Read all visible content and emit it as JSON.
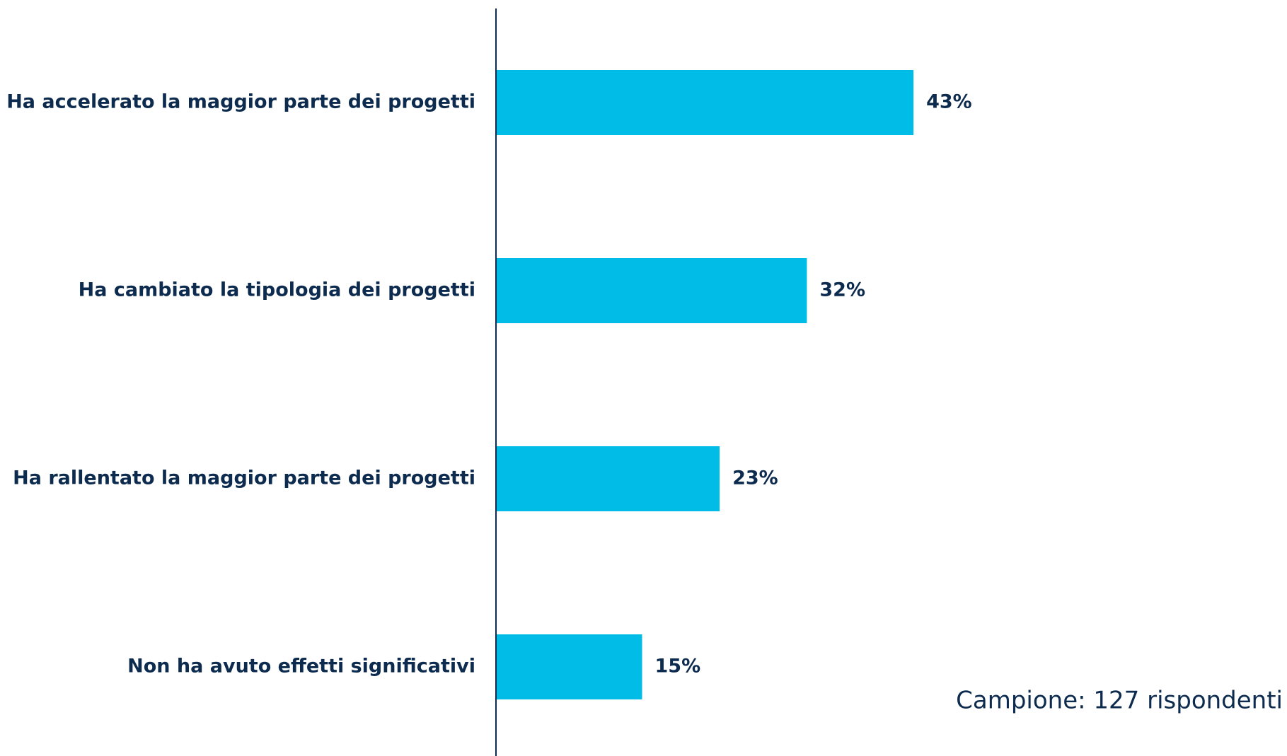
{
  "chart_data": {
    "type": "bar",
    "orientation": "horizontal",
    "categories": [
      "Ha accelerato la maggior parte dei progetti",
      "Ha cambiato la tipologia dei progetti",
      "Ha rallentato la maggior parte dei progetti",
      "Non ha avuto effetti significativi"
    ],
    "values": [
      43,
      32,
      23,
      15
    ],
    "value_labels": [
      "43%",
      "32%",
      "23%",
      "15%"
    ],
    "color": "#00bce6",
    "annotation": "Campione: 127 rispondenti"
  }
}
